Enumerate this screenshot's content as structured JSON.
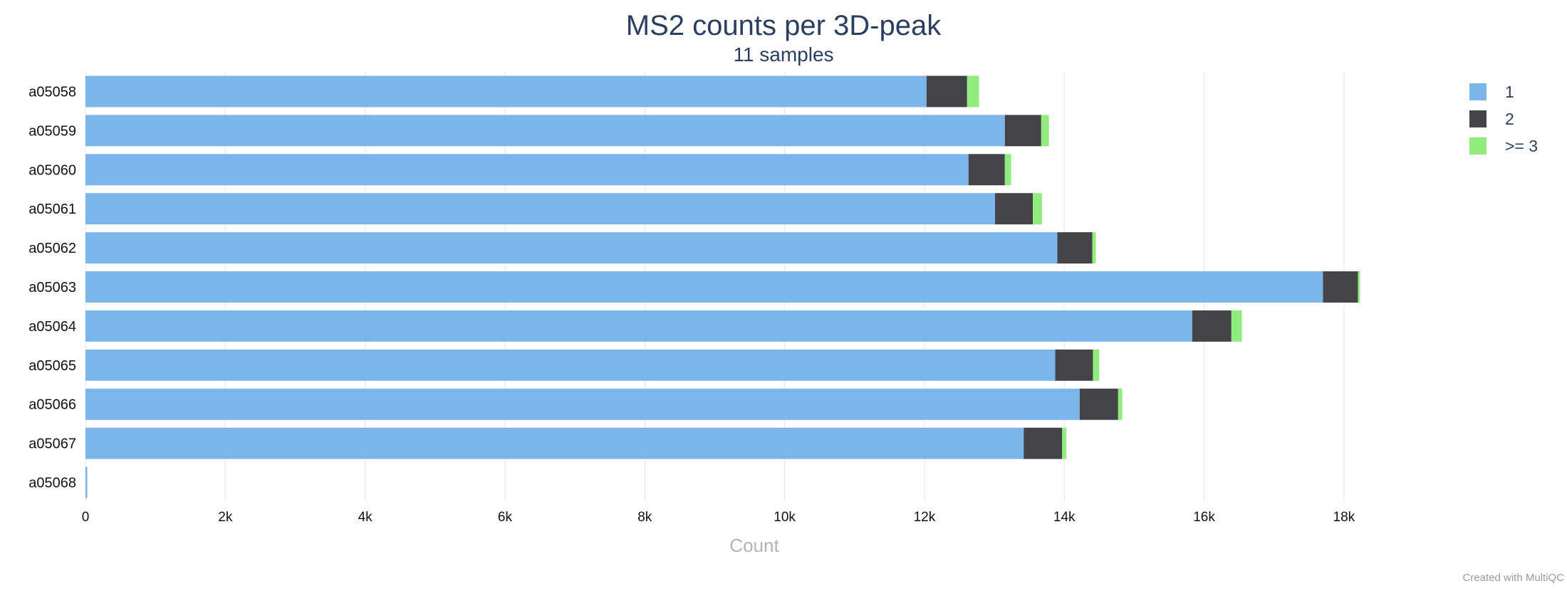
{
  "chart_data": {
    "type": "bar",
    "orientation": "horizontal",
    "stacked": true,
    "title": "MS2 counts per 3D-peak",
    "subtitle": "11 samples",
    "xlabel": "Count",
    "ylabel": "",
    "xlim": [
      0,
      19000
    ],
    "xticks": [
      0,
      2000,
      4000,
      6000,
      8000,
      10000,
      12000,
      14000,
      16000,
      18000
    ],
    "xtick_labels": [
      "0",
      "2k",
      "4k",
      "6k",
      "8k",
      "10k",
      "12k",
      "14k",
      "16k",
      "18k"
    ],
    "grid": true,
    "legend_position": "top-right",
    "categories": [
      "a05058",
      "a05059",
      "a05060",
      "a05061",
      "a05062",
      "a05063",
      "a05064",
      "a05065",
      "a05066",
      "a05067",
      "a05068"
    ],
    "series": [
      {
        "name": "1",
        "color": "#7cb5ec",
        "values": [
          12030,
          13150,
          12630,
          13010,
          13900,
          17700,
          15830,
          13870,
          14220,
          13420,
          25
        ]
      },
      {
        "name": "2",
        "color": "#434348",
        "values": [
          580,
          520,
          520,
          540,
          500,
          500,
          560,
          540,
          550,
          550,
          0
        ]
      },
      {
        "name": ">= 3",
        "color": "#90ed7d",
        "values": [
          170,
          110,
          90,
          130,
          50,
          30,
          150,
          90,
          60,
          60,
          0
        ]
      }
    ]
  },
  "footer": {
    "credit": "Created with MultiQC"
  }
}
